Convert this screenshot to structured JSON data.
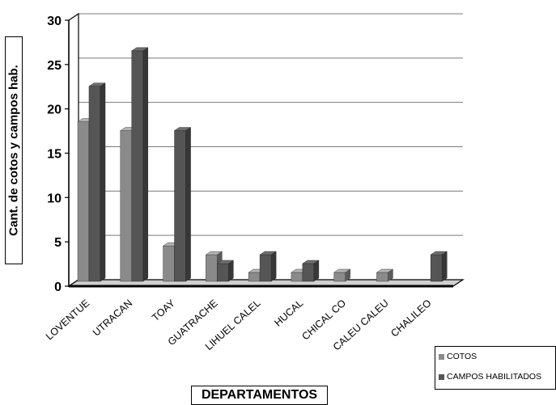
{
  "chart_data": {
    "type": "bar",
    "title": "",
    "xlabel": "DEPARTAMENTOS",
    "ylabel": "Cant. de cotos y campos hab.",
    "ylim": [
      0,
      30
    ],
    "yticks": [
      0,
      5,
      10,
      15,
      20,
      25,
      30
    ],
    "grid": true,
    "legend_position": "bottom-right",
    "categories": [
      "LOVENTUE",
      "UTRACAN",
      "TOAY",
      "GUATRACHE",
      "LIHUEL CALEL",
      "HUCAL",
      "CHICAL CO",
      "CALEU CALEU",
      "CHALILEO"
    ],
    "series": [
      {
        "name": "COTOS",
        "values": [
          18,
          17,
          4,
          3,
          1,
          1,
          1,
          1,
          0
        ],
        "color": "#8a8a8a"
      },
      {
        "name": "CAMPOS HABILITADOS",
        "values": [
          22,
          26,
          17,
          2,
          3,
          2,
          0,
          0,
          3
        ],
        "color": "#555555"
      }
    ]
  }
}
